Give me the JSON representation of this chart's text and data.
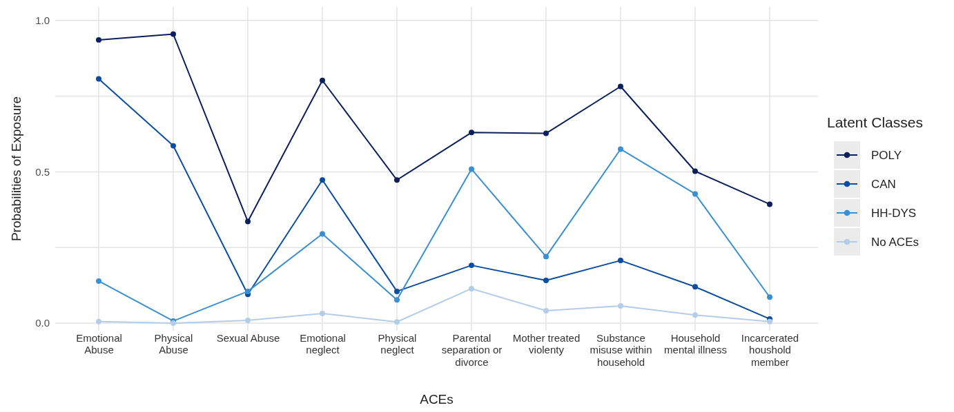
{
  "chart_data": {
    "type": "line",
    "xlabel": "ACEs",
    "ylabel": "Probabilities of Exposure",
    "legend_title": "Latent Classes",
    "legend": "right",
    "grid": true,
    "marker": "circle",
    "line_style": "solid",
    "categories": [
      "Emotional Abuse",
      "Physical Abuse",
      "Sexual Abuse",
      "Emotional neglect",
      "Physical neglect",
      "Parental separation or divorce",
      "Mother treated violenty",
      "Substance misuse within household",
      "Household mental illness",
      "Incarcerated houshold member"
    ],
    "ylim": [
      -0.025,
      1.045
    ],
    "yticks": [
      {
        "value": 0,
        "label": "0.0"
      },
      {
        "value": 0.25,
        "label": null
      },
      {
        "value": 0.5,
        "label": "0.5"
      },
      {
        "value": 0.75,
        "label": null
      },
      {
        "value": 1,
        "label": "1.0"
      }
    ],
    "series": [
      {
        "name": "POLY",
        "color": "#0b1f5c",
        "values": [
          0.936,
          0.955,
          0.336,
          0.802,
          0.473,
          0.63,
          0.627,
          0.782,
          0.502,
          0.393
        ]
      },
      {
        "name": "CAN",
        "color": "#0a4da0",
        "values": [
          0.807,
          0.586,
          0.095,
          0.473,
          0.105,
          0.191,
          0.141,
          0.207,
          0.12,
          0.014
        ]
      },
      {
        "name": "HH-DYS",
        "color": "#3a8fd0",
        "values": [
          0.139,
          0.007,
          0.105,
          0.295,
          0.077,
          0.509,
          0.22,
          0.575,
          0.427,
          0.086
        ]
      },
      {
        "name": "No ACEs",
        "color": "#b3cde8",
        "values": [
          0.005,
          0.0,
          0.009,
          0.032,
          0.004,
          0.114,
          0.041,
          0.057,
          0.027,
          0.005
        ]
      }
    ]
  }
}
